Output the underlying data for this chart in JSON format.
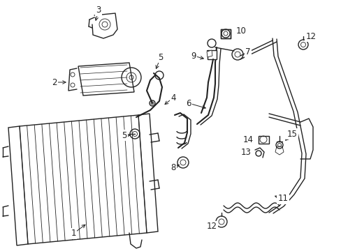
{
  "background_color": "#ffffff",
  "line_color": "#222222",
  "lw": 1.0,
  "tlw": 0.6,
  "label_fontsize": 8.5
}
